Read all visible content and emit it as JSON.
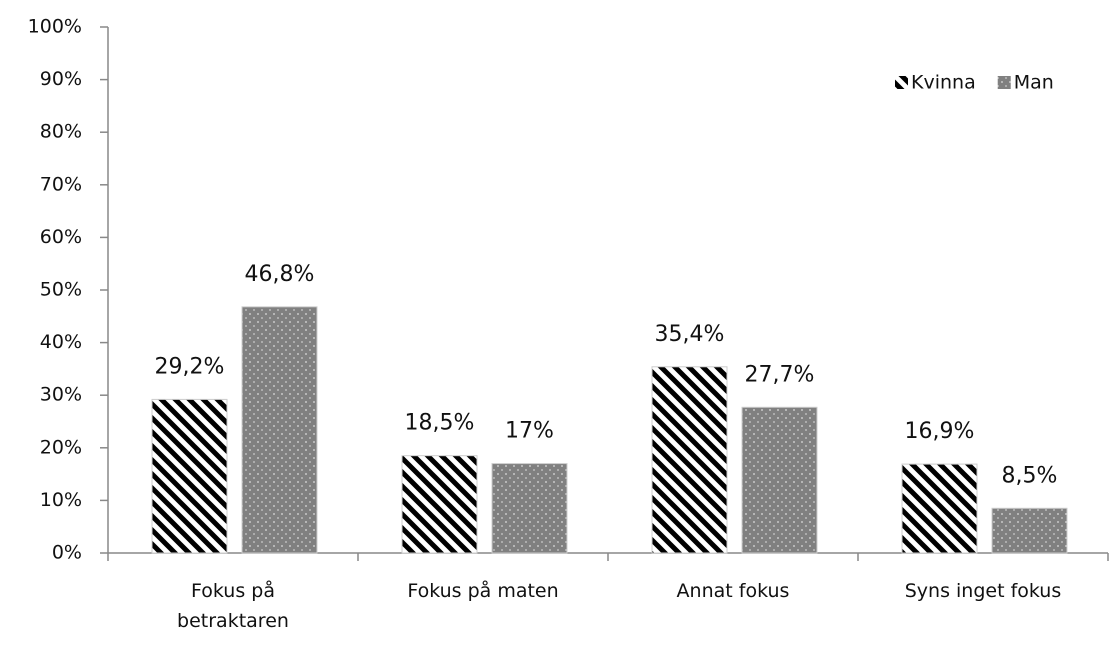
{
  "chart_data": {
    "type": "bar",
    "categories": [
      "Fokus på betraktaren",
      "Fokus på maten",
      "Annat fokus",
      "Syns inget fokus"
    ],
    "series": [
      {
        "name": "Kvinna",
        "color": "#000000",
        "values": [
          29.2,
          18.5,
          35.4,
          16.9
        ],
        "value_labels": [
          "29,2%",
          "18,5%",
          "35,4%",
          "16,9%"
        ]
      },
      {
        "name": "Man",
        "color": "#808080",
        "values": [
          46.8,
          17,
          27.7,
          8.5
        ],
        "value_labels": [
          "46,8%",
          "17%",
          "27,7%",
          "8,5%"
        ]
      }
    ],
    "ylim": [
      0,
      100
    ],
    "yticks": [
      {
        "value": 0,
        "label": "0%"
      },
      {
        "value": 10,
        "label": "10%"
      },
      {
        "value": 20,
        "label": "20%"
      },
      {
        "value": 30,
        "label": "30%"
      },
      {
        "value": 40,
        "label": "40%"
      },
      {
        "value": 50,
        "label": "50%"
      },
      {
        "value": 60,
        "label": "60%"
      },
      {
        "value": 70,
        "label": "70%"
      },
      {
        "value": 80,
        "label": "80%"
      },
      {
        "value": 90,
        "label": "90%"
      },
      {
        "value": 100,
        "label": "100%"
      }
    ],
    "legend": "top-right",
    "grid": false
  }
}
